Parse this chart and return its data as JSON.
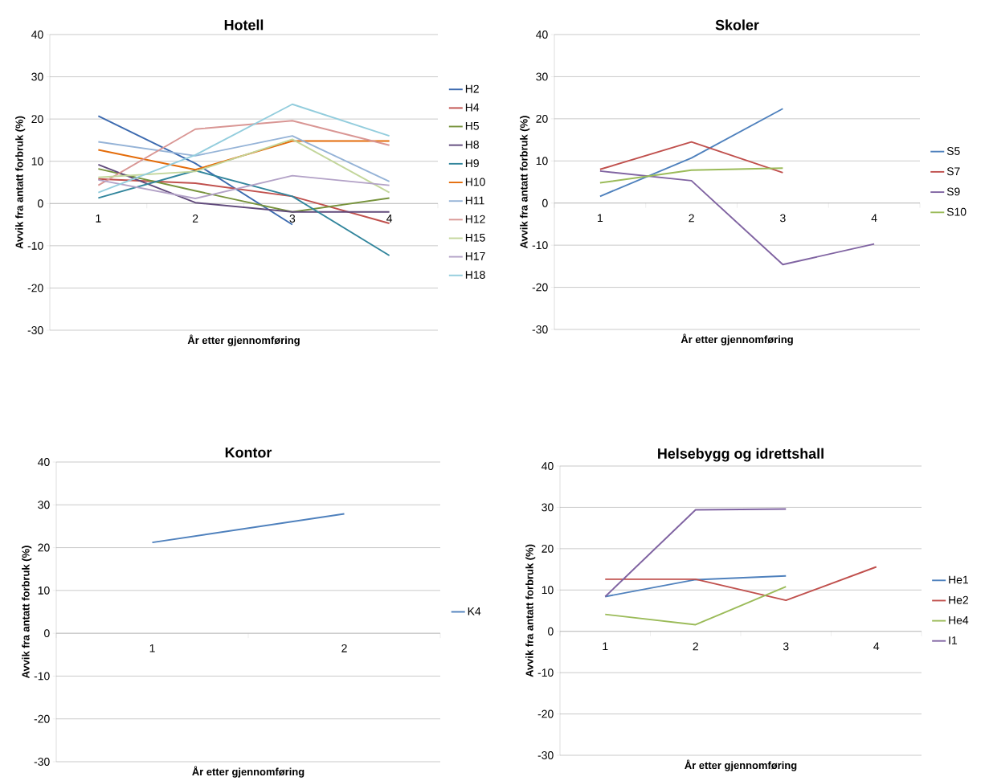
{
  "chart_data": [
    {
      "type": "line",
      "title": "Hotell",
      "xlabel": "År etter gjennomføring",
      "ylabel": "Avvik fra antatt forbruk (%)",
      "categories": [
        "1",
        "2",
        "3",
        "4"
      ],
      "ylim": [
        -30,
        40
      ],
      "yticks": [
        -30,
        -20,
        -10,
        0,
        10,
        20,
        30,
        40
      ],
      "grid": "y",
      "legend": "right",
      "series": [
        {
          "name": "H2",
          "color": "#3c6aaf",
          "values": [
            20.7,
            9.5,
            -5.0,
            null
          ]
        },
        {
          "name": "H4",
          "color": "#c0504d",
          "values": [
            5.8,
            4.8,
            1.7,
            -4.7
          ]
        },
        {
          "name": "H5",
          "color": "#77933c",
          "values": [
            8.2,
            3.0,
            -2.0,
            1.3
          ]
        },
        {
          "name": "H8",
          "color": "#604a7b",
          "values": [
            9.2,
            0.2,
            -2.0,
            -2.0
          ]
        },
        {
          "name": "H9",
          "color": "#31859c",
          "values": [
            1.3,
            7.8,
            1.7,
            -12.3
          ]
        },
        {
          "name": "H10",
          "color": "#e46c0a",
          "values": [
            12.7,
            8.0,
            14.8,
            14.8
          ]
        },
        {
          "name": "H11",
          "color": "#95b3d7",
          "values": [
            14.6,
            11.3,
            16.0,
            5.2
          ]
        },
        {
          "name": "H12",
          "color": "#d99694",
          "values": [
            4.3,
            17.6,
            19.6,
            13.8
          ]
        },
        {
          "name": "H15",
          "color": "#c3d69b",
          "values": [
            6.2,
            7.6,
            15.2,
            2.6
          ]
        },
        {
          "name": "H17",
          "color": "#b3a2c7",
          "values": [
            5.6,
            1.2,
            6.6,
            4.3
          ]
        },
        {
          "name": "H18",
          "color": "#93cddd",
          "values": [
            2.6,
            11.5,
            23.5,
            16.0
          ]
        }
      ]
    },
    {
      "type": "line",
      "title": "Skoler",
      "xlabel": "År etter gjennomføring",
      "ylabel": "Avvik fra antatt forbruk (%)",
      "categories": [
        "1",
        "2",
        "3",
        "4"
      ],
      "ylim": [
        -30,
        40
      ],
      "yticks": [
        -30,
        -20,
        -10,
        0,
        10,
        20,
        30,
        40
      ],
      "grid": "y",
      "legend": "right",
      "series": [
        {
          "name": "S5",
          "color": "#4f81bd",
          "values": [
            1.6,
            10.7,
            22.4,
            null
          ]
        },
        {
          "name": "S7",
          "color": "#c0504d",
          "values": [
            8.0,
            14.5,
            7.2,
            null
          ]
        },
        {
          "name": "S9",
          "color": "#8064a2",
          "values": [
            7.6,
            5.3,
            -14.6,
            -9.7
          ]
        },
        {
          "name": "S10",
          "color": "#9bbb59",
          "values": [
            4.8,
            7.8,
            8.3,
            null
          ]
        }
      ]
    },
    {
      "type": "line",
      "title": "Kontor",
      "xlabel": "År etter gjennomføring",
      "ylabel": "Avvik fra antatt forbruk (%)",
      "categories": [
        "1",
        "2"
      ],
      "ylim": [
        -30,
        40
      ],
      "yticks": [
        -30,
        -20,
        -10,
        0,
        10,
        20,
        30,
        40
      ],
      "grid": "y",
      "legend": "right",
      "series": [
        {
          "name": "K4",
          "color": "#4f81bd",
          "values": [
            21.2,
            27.9
          ]
        }
      ]
    },
    {
      "type": "line",
      "title": "Helsebygg og idrettshall",
      "xlabel": "År etter gjennomføring",
      "ylabel": "Avvik fra antatt forbruk (%)",
      "categories": [
        "1",
        "2",
        "3",
        "4"
      ],
      "ylim": [
        -30,
        40
      ],
      "yticks": [
        -30,
        -20,
        -10,
        0,
        10,
        20,
        30,
        40
      ],
      "grid": "y",
      "legend": "right",
      "series": [
        {
          "name": "He1",
          "color": "#4f81bd",
          "values": [
            8.4,
            12.5,
            13.4,
            null
          ]
        },
        {
          "name": "He2",
          "color": "#c0504d",
          "values": [
            12.6,
            12.6,
            7.5,
            15.6
          ]
        },
        {
          "name": "He4",
          "color": "#9bbb59",
          "values": [
            4.1,
            1.6,
            10.8,
            null
          ]
        },
        {
          "name": "I1",
          "color": "#8064a2",
          "values": [
            8.4,
            29.4,
            29.6,
            null
          ]
        }
      ]
    }
  ]
}
